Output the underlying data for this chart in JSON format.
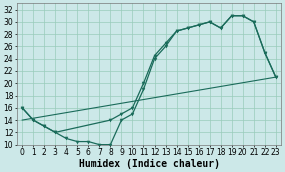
{
  "xlabel": "Humidex (Indice chaleur)",
  "xlim": [
    -0.5,
    23.5
  ],
  "ylim": [
    10,
    33
  ],
  "xticks": [
    0,
    1,
    2,
    3,
    4,
    5,
    6,
    7,
    8,
    9,
    10,
    11,
    12,
    13,
    14,
    15,
    16,
    17,
    18,
    19,
    20,
    21,
    22,
    23
  ],
  "yticks": [
    10,
    12,
    14,
    16,
    18,
    20,
    22,
    24,
    26,
    28,
    30,
    32
  ],
  "bg_color": "#cce8e8",
  "line_color": "#1a6b5a",
  "line1_x": [
    0,
    1,
    2,
    3,
    4,
    5,
    6,
    7,
    8,
    9,
    10,
    11,
    12,
    13,
    14,
    15,
    16,
    17,
    18,
    19,
    20,
    21,
    22,
    23
  ],
  "line1_y": [
    16,
    14,
    13,
    12,
    11,
    10.5,
    10.5,
    10,
    10,
    14,
    15,
    19,
    24,
    26,
    28.5,
    29,
    29.5,
    30,
    29,
    31,
    31,
    30,
    25,
    21
  ],
  "line2_x": [
    0,
    1,
    2,
    3,
    8,
    9,
    10,
    11,
    12,
    13,
    14,
    15,
    16,
    17,
    18,
    19,
    20,
    21,
    22,
    23
  ],
  "line2_y": [
    16,
    14,
    13,
    12,
    14,
    15,
    16,
    20,
    24.5,
    26.5,
    28.5,
    29,
    29.5,
    30,
    29,
    31,
    31,
    30,
    25,
    21
  ],
  "line3_x": [
    0,
    23
  ],
  "line3_y": [
    14,
    21
  ],
  "grid_color": "#99ccbb",
  "tick_fontsize": 5.5,
  "xlabel_fontsize": 7
}
